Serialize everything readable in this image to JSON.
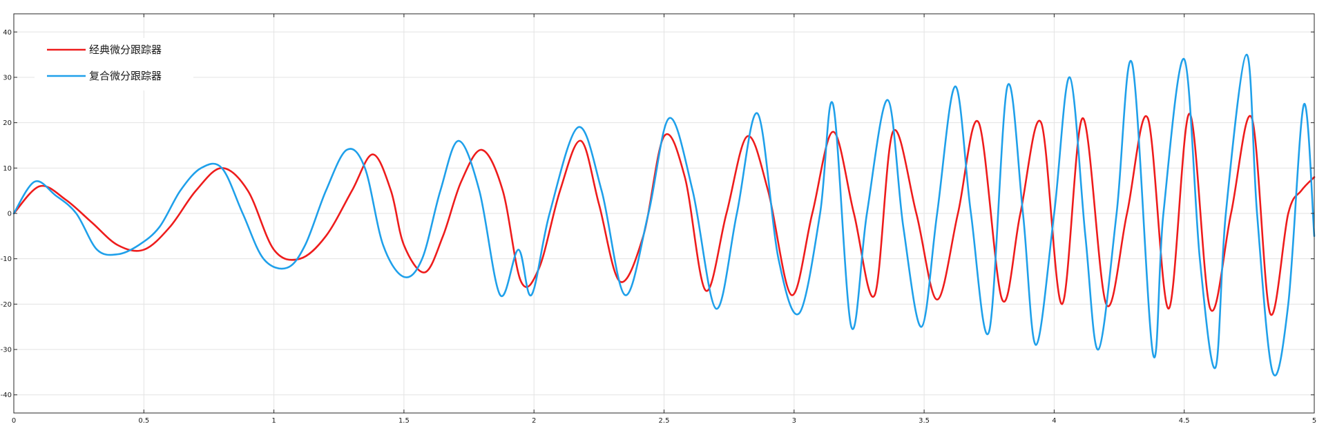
{
  "chart_data": {
    "type": "line",
    "title": "",
    "xlabel": "",
    "ylabel": "",
    "xlim": [
      0,
      5
    ],
    "ylim": [
      -44,
      44
    ],
    "grid": true,
    "legend_position": "top-left",
    "x_ticks": [
      0,
      0.5,
      1,
      1.5,
      2,
      2.5,
      3,
      3.5,
      4,
      4.5,
      5
    ],
    "x_tick_labels": [
      "0",
      "0.5",
      "1",
      "1.5",
      "2",
      "2.5",
      "3",
      "3.5",
      "4",
      "4.5",
      "5"
    ],
    "y_ticks": [
      40,
      30,
      20,
      10,
      0,
      -10,
      -20,
      -30,
      -40
    ],
    "y_tick_labels": [
      "40",
      "30",
      "20",
      "10",
      "0",
      "-10",
      "-20",
      "-30",
      "-40"
    ],
    "series": [
      {
        "name": "经典微分跟踪器",
        "color": "#ee1c1c",
        "x": [
          0.0,
          0.1,
          0.2,
          0.3,
          0.4,
          0.5,
          0.6,
          0.7,
          0.8,
          0.9,
          1.0,
          1.1,
          1.2,
          1.3,
          1.38,
          1.45,
          1.5,
          1.58,
          1.65,
          1.72,
          1.8,
          1.88,
          1.95,
          2.02,
          2.1,
          2.18,
          2.25,
          2.33,
          2.42,
          2.5,
          2.58,
          2.66,
          2.74,
          2.82,
          2.9,
          2.99,
          3.07,
          3.15,
          3.23,
          3.31,
          3.38,
          3.47,
          3.55,
          3.63,
          3.71,
          3.8,
          3.87,
          3.95,
          4.03,
          4.11,
          4.2,
          4.28,
          4.36,
          4.44,
          4.52,
          4.6,
          4.68,
          4.76,
          4.83,
          4.9,
          4.95,
          5.0
        ],
        "y": [
          0,
          6,
          3,
          -2,
          -7,
          -8,
          -3,
          5,
          10,
          5,
          -8,
          -10,
          -5,
          5,
          13,
          5,
          -7,
          -13,
          -5,
          7,
          14,
          5,
          -15,
          -12,
          5,
          16,
          2,
          -15,
          -5,
          17,
          8,
          -17,
          0,
          17,
          5,
          -18,
          0,
          18,
          0,
          -18,
          18,
          0,
          -19,
          0,
          20,
          -19,
          0,
          20,
          -20,
          21,
          -20,
          0,
          21,
          -21,
          22,
          -21,
          0,
          21,
          -22,
          0,
          5,
          8
        ]
      },
      {
        "name": "复合微分跟踪器",
        "color": "#1fa0ea",
        "x": [
          0.0,
          0.08,
          0.16,
          0.24,
          0.32,
          0.4,
          0.48,
          0.56,
          0.64,
          0.72,
          0.8,
          0.88,
          0.96,
          1.05,
          1.12,
          1.2,
          1.28,
          1.35,
          1.42,
          1.5,
          1.57,
          1.64,
          1.71,
          1.79,
          1.87,
          1.94,
          1.99,
          2.06,
          2.17,
          2.26,
          2.35,
          2.44,
          2.52,
          2.61,
          2.7,
          2.78,
          2.86,
          2.94,
          3.02,
          3.1,
          3.15,
          3.22,
          3.28,
          3.36,
          3.42,
          3.49,
          3.55,
          3.62,
          3.68,
          3.75,
          3.82,
          3.88,
          3.93,
          4.0,
          4.06,
          4.12,
          4.17,
          4.24,
          4.3,
          4.38,
          4.42,
          4.5,
          4.56,
          4.62,
          4.66,
          4.74,
          4.78,
          4.84,
          4.9,
          4.96,
          5.0
        ],
        "y": [
          0,
          7,
          4,
          0,
          -8,
          -9,
          -7,
          -3,
          5,
          10,
          10,
          0,
          -10,
          -12,
          -7,
          5,
          14,
          10,
          -7,
          -14,
          -10,
          5,
          16,
          5,
          -18,
          -8,
          -18,
          0,
          19,
          5,
          -18,
          0,
          21,
          5,
          -21,
          0,
          22,
          -10,
          -22,
          0,
          24,
          -25,
          0,
          25,
          -3,
          -25,
          0,
          28,
          0,
          -26,
          28,
          0,
          -29,
          0,
          30,
          -5,
          -30,
          0,
          33,
          -31,
          0,
          34,
          -10,
          -34,
          0,
          35,
          0,
          -35,
          -20,
          24,
          -5
        ]
      }
    ]
  }
}
